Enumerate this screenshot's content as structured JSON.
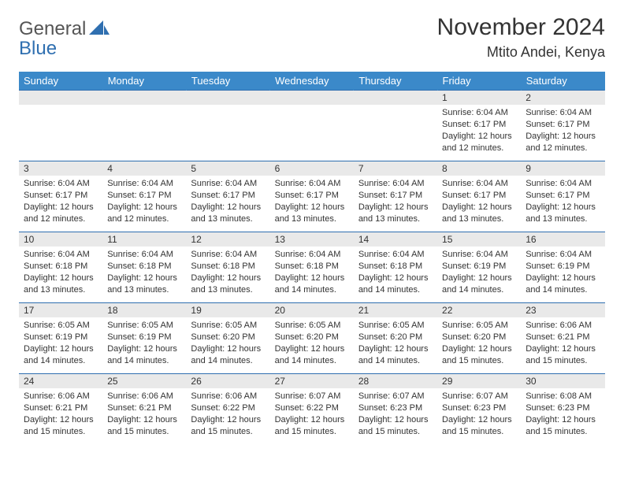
{
  "logo": {
    "word1": "General",
    "word2": "Blue",
    "shape_color": "#2f6fb0",
    "text_color_main": "#555555"
  },
  "title": {
    "month": "November 2024",
    "location": "Mtito Andei, Kenya"
  },
  "colors": {
    "header_bg": "#3b89c9",
    "header_text": "#ffffff",
    "rule": "#2f6fb0",
    "daynum_bg": "#e9e9e9",
    "body_text": "#333333",
    "page_bg": "#ffffff"
  },
  "day_headers": [
    "Sunday",
    "Monday",
    "Tuesday",
    "Wednesday",
    "Thursday",
    "Friday",
    "Saturday"
  ],
  "weeks": [
    [
      {
        "n": "",
        "sun": null
      },
      {
        "n": "",
        "sun": null
      },
      {
        "n": "",
        "sun": null
      },
      {
        "n": "",
        "sun": null
      },
      {
        "n": "",
        "sun": null
      },
      {
        "n": "1",
        "sunrise": "6:04 AM",
        "sunset": "6:17 PM",
        "daylight": "12 hours and 12 minutes."
      },
      {
        "n": "2",
        "sunrise": "6:04 AM",
        "sunset": "6:17 PM",
        "daylight": "12 hours and 12 minutes."
      }
    ],
    [
      {
        "n": "3",
        "sunrise": "6:04 AM",
        "sunset": "6:17 PM",
        "daylight": "12 hours and 12 minutes."
      },
      {
        "n": "4",
        "sunrise": "6:04 AM",
        "sunset": "6:17 PM",
        "daylight": "12 hours and 12 minutes."
      },
      {
        "n": "5",
        "sunrise": "6:04 AM",
        "sunset": "6:17 PM",
        "daylight": "12 hours and 13 minutes."
      },
      {
        "n": "6",
        "sunrise": "6:04 AM",
        "sunset": "6:17 PM",
        "daylight": "12 hours and 13 minutes."
      },
      {
        "n": "7",
        "sunrise": "6:04 AM",
        "sunset": "6:17 PM",
        "daylight": "12 hours and 13 minutes."
      },
      {
        "n": "8",
        "sunrise": "6:04 AM",
        "sunset": "6:17 PM",
        "daylight": "12 hours and 13 minutes."
      },
      {
        "n": "9",
        "sunrise": "6:04 AM",
        "sunset": "6:17 PM",
        "daylight": "12 hours and 13 minutes."
      }
    ],
    [
      {
        "n": "10",
        "sunrise": "6:04 AM",
        "sunset": "6:18 PM",
        "daylight": "12 hours and 13 minutes."
      },
      {
        "n": "11",
        "sunrise": "6:04 AM",
        "sunset": "6:18 PM",
        "daylight": "12 hours and 13 minutes."
      },
      {
        "n": "12",
        "sunrise": "6:04 AM",
        "sunset": "6:18 PM",
        "daylight": "12 hours and 13 minutes."
      },
      {
        "n": "13",
        "sunrise": "6:04 AM",
        "sunset": "6:18 PM",
        "daylight": "12 hours and 14 minutes."
      },
      {
        "n": "14",
        "sunrise": "6:04 AM",
        "sunset": "6:18 PM",
        "daylight": "12 hours and 14 minutes."
      },
      {
        "n": "15",
        "sunrise": "6:04 AM",
        "sunset": "6:19 PM",
        "daylight": "12 hours and 14 minutes."
      },
      {
        "n": "16",
        "sunrise": "6:04 AM",
        "sunset": "6:19 PM",
        "daylight": "12 hours and 14 minutes."
      }
    ],
    [
      {
        "n": "17",
        "sunrise": "6:05 AM",
        "sunset": "6:19 PM",
        "daylight": "12 hours and 14 minutes."
      },
      {
        "n": "18",
        "sunrise": "6:05 AM",
        "sunset": "6:19 PM",
        "daylight": "12 hours and 14 minutes."
      },
      {
        "n": "19",
        "sunrise": "6:05 AM",
        "sunset": "6:20 PM",
        "daylight": "12 hours and 14 minutes."
      },
      {
        "n": "20",
        "sunrise": "6:05 AM",
        "sunset": "6:20 PM",
        "daylight": "12 hours and 14 minutes."
      },
      {
        "n": "21",
        "sunrise": "6:05 AM",
        "sunset": "6:20 PM",
        "daylight": "12 hours and 14 minutes."
      },
      {
        "n": "22",
        "sunrise": "6:05 AM",
        "sunset": "6:20 PM",
        "daylight": "12 hours and 15 minutes."
      },
      {
        "n": "23",
        "sunrise": "6:06 AM",
        "sunset": "6:21 PM",
        "daylight": "12 hours and 15 minutes."
      }
    ],
    [
      {
        "n": "24",
        "sunrise": "6:06 AM",
        "sunset": "6:21 PM",
        "daylight": "12 hours and 15 minutes."
      },
      {
        "n": "25",
        "sunrise": "6:06 AM",
        "sunset": "6:21 PM",
        "daylight": "12 hours and 15 minutes."
      },
      {
        "n": "26",
        "sunrise": "6:06 AM",
        "sunset": "6:22 PM",
        "daylight": "12 hours and 15 minutes."
      },
      {
        "n": "27",
        "sunrise": "6:07 AM",
        "sunset": "6:22 PM",
        "daylight": "12 hours and 15 minutes."
      },
      {
        "n": "28",
        "sunrise": "6:07 AM",
        "sunset": "6:23 PM",
        "daylight": "12 hours and 15 minutes."
      },
      {
        "n": "29",
        "sunrise": "6:07 AM",
        "sunset": "6:23 PM",
        "daylight": "12 hours and 15 minutes."
      },
      {
        "n": "30",
        "sunrise": "6:08 AM",
        "sunset": "6:23 PM",
        "daylight": "12 hours and 15 minutes."
      }
    ]
  ],
  "labels": {
    "sunrise": "Sunrise:",
    "sunset": "Sunset:",
    "daylight": "Daylight:"
  }
}
